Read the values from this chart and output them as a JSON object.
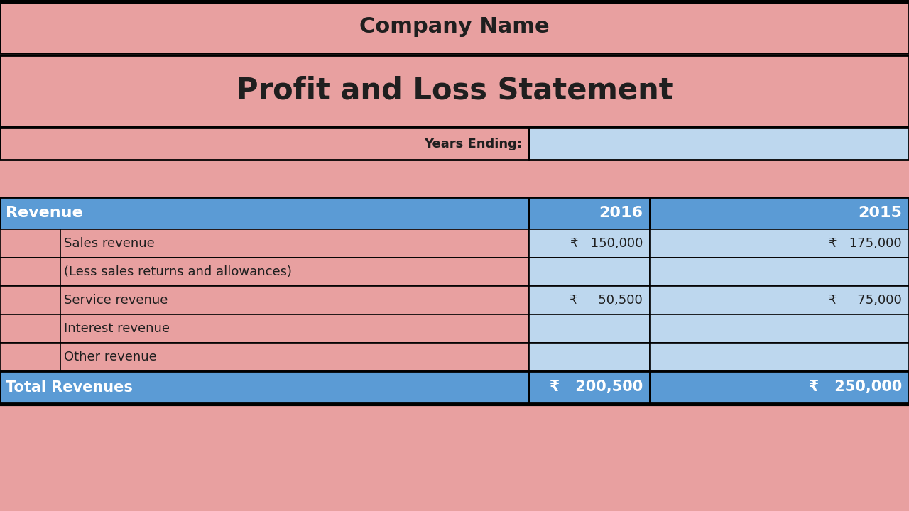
{
  "title": "Company Name",
  "subtitle": "Profit and Loss Statement",
  "years_ending_label": "Years Ending:",
  "section_header": "Revenue",
  "col2016": "2016",
  "col2015": "2015",
  "rows": [
    {
      "label": "Sales revenue",
      "v2016": "₹   150,000",
      "v2015": "₹   175,000"
    },
    {
      "label": "(Less sales returns and allowances)",
      "v2016": "",
      "v2015": ""
    },
    {
      "label": "Service revenue",
      "v2016": "₹     50,500",
      "v2015": "₹     75,000"
    },
    {
      "label": "Interest revenue",
      "v2016": "",
      "v2015": ""
    },
    {
      "label": "Other revenue",
      "v2016": "",
      "v2015": ""
    }
  ],
  "total_label": "Total Revenues",
  "total_2016": "₹   200,500",
  "total_2015": "₹   250,000",
  "bg_pink": "#E8A0A0",
  "bg_blue_header": "#5B9BD5",
  "bg_blue_light": "#BDD7EE",
  "border_dark": "#1F3864",
  "border_black": "#000000",
  "text_dark": "#1F1F1F",
  "text_white": "#FFFFFF",
  "fig_w": 12.8,
  "fig_h": 7.2,
  "dpi": 100
}
